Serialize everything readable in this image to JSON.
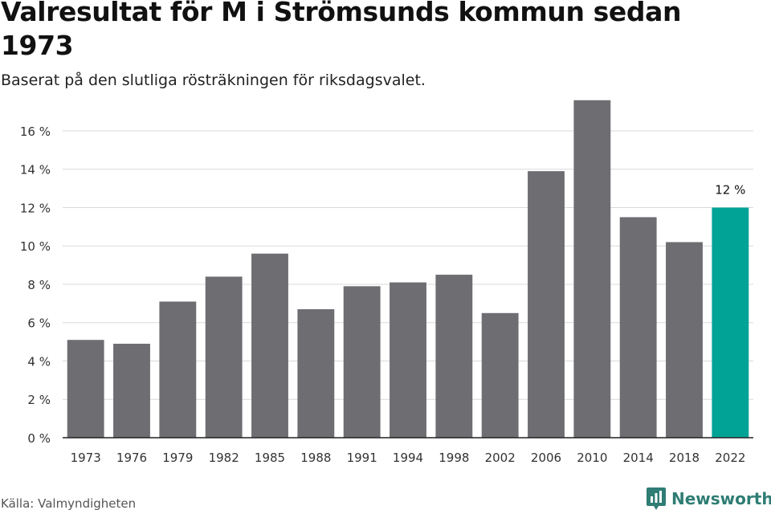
{
  "title": "Valresultat för M i Strömsunds kommun sedan 1973",
  "subtitle": "Baserat på den slutliga rösträkningen för riksdagsvalet.",
  "source": "Källa: Valmyndigheten",
  "brand": "Newsworthy",
  "colors": {
    "bar": "#6e6d72",
    "highlight": "#00a396",
    "grid": "#d9d9d9",
    "axis": "#222222",
    "brand": "#2f7d74"
  },
  "chart_data": {
    "type": "bar",
    "categories": [
      "1973",
      "1976",
      "1979",
      "1982",
      "1985",
      "1988",
      "1991",
      "1994",
      "1998",
      "2002",
      "2006",
      "2010",
      "2014",
      "2018",
      "2022"
    ],
    "values": [
      5.1,
      4.9,
      7.1,
      8.4,
      9.6,
      6.7,
      7.9,
      8.1,
      8.5,
      6.5,
      13.9,
      17.6,
      11.5,
      10.2,
      12.0
    ],
    "highlight_index": 14,
    "annotation": "12 %",
    "ylim": [
      0,
      17.8
    ],
    "yticks": [
      0,
      2,
      4,
      6,
      8,
      10,
      12,
      14,
      16
    ],
    "ytick_labels": [
      "0 %",
      "2 %",
      "4 %",
      "6 %",
      "8 %",
      "10 %",
      "12 %",
      "14 %",
      "16 %"
    ],
    "grid": true,
    "legend": "none"
  }
}
